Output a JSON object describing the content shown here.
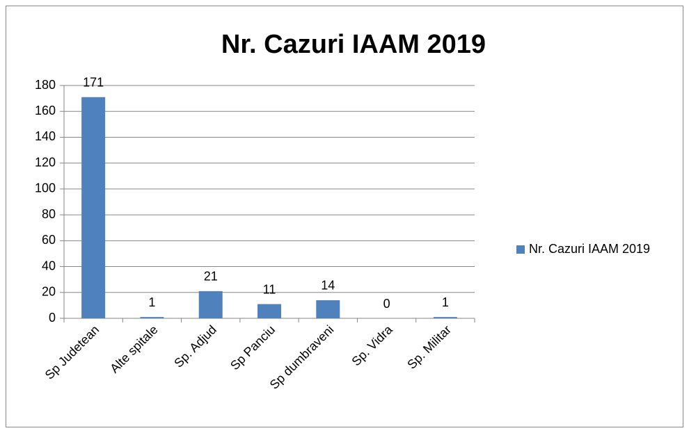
{
  "chart_data": {
    "type": "bar",
    "title": "Nr. Cazuri IAAM 2019",
    "categories": [
      "Sp Judetean",
      "Alte spitale",
      "Sp. Adjud",
      "Sp Panciu",
      "Sp dumbraveni",
      "Sp. Vidra",
      "Sp. Militar"
    ],
    "series": [
      {
        "name": "Nr. Cazuri IAAM 2019",
        "color": "#4f81bd",
        "values": [
          171,
          1,
          21,
          11,
          14,
          0,
          1
        ]
      }
    ],
    "ylim": [
      0,
      180
    ],
    "yticks": [
      0,
      20,
      40,
      60,
      80,
      100,
      120,
      140,
      160,
      180
    ],
    "grid": true,
    "legend": "right"
  }
}
